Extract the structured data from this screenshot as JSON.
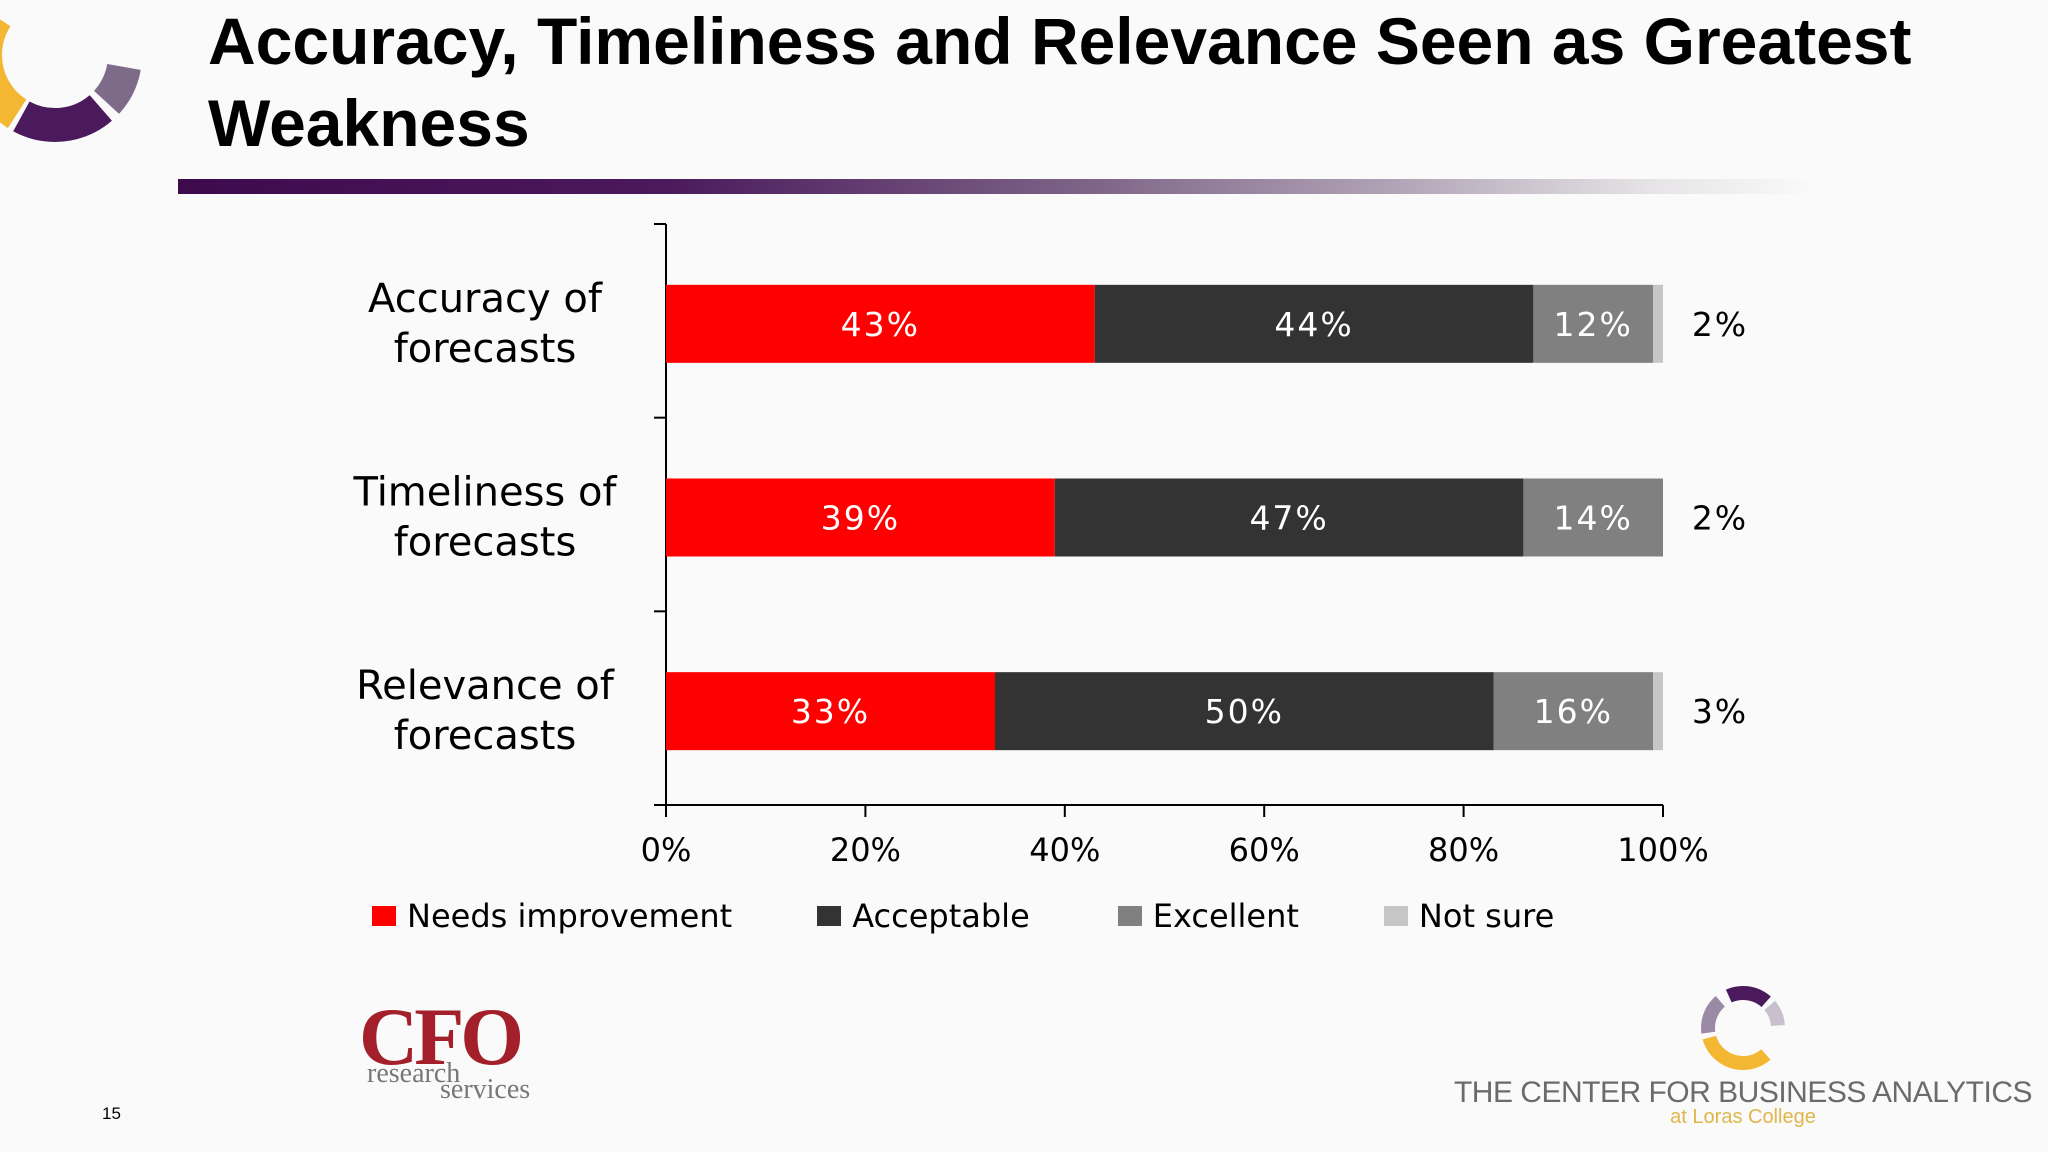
{
  "slide": {
    "title": "Accuracy, Timeliness and Relevance Seen as Greatest Weakness",
    "page_number": "15"
  },
  "logos": {
    "cfo_main": "CFO",
    "cfo_sub1": "research",
    "cfo_sub2": "services",
    "cba_name": "THE CENTER FOR BUSINESS ANALYTICS",
    "cba_sub": "at Loras College"
  },
  "colors": {
    "needs_improvement": "#ff0000",
    "acceptable": "#343334",
    "excellent": "#808080",
    "not_sure": "#c6c6c6",
    "brand_purple": "#4b1a5c",
    "brand_gold": "#f3b731"
  },
  "chart_data": {
    "type": "bar",
    "orientation": "horizontal",
    "stacked": true,
    "categories": [
      "Accuracy of forecasts",
      "Timeliness of forecasts",
      "Relevance of forecasts"
    ],
    "category_lines": [
      [
        "Accuracy of",
        "forecasts"
      ],
      [
        "Timeliness of",
        "forecasts"
      ],
      [
        "Relevance of",
        "forecasts"
      ]
    ],
    "series": [
      {
        "name": "Needs improvement",
        "values": [
          43,
          39,
          33
        ],
        "labels": [
          "43%",
          "39%",
          "33%"
        ]
      },
      {
        "name": "Acceptable",
        "values": [
          44,
          47,
          50
        ],
        "labels": [
          "44%",
          "47%",
          "50%"
        ]
      },
      {
        "name": "Excellent",
        "values": [
          12,
          14,
          16
        ],
        "labels": [
          "12%",
          "14%",
          "16%"
        ]
      },
      {
        "name": "Not sure",
        "values": [
          2,
          2,
          3
        ],
        "labels": [
          "2%",
          "2%",
          "3%"
        ]
      }
    ],
    "xlim": [
      0,
      100
    ],
    "xticks": [
      "0%",
      "20%",
      "40%",
      "60%",
      "80%",
      "100%"
    ],
    "grid": false,
    "legend": "bottom"
  }
}
